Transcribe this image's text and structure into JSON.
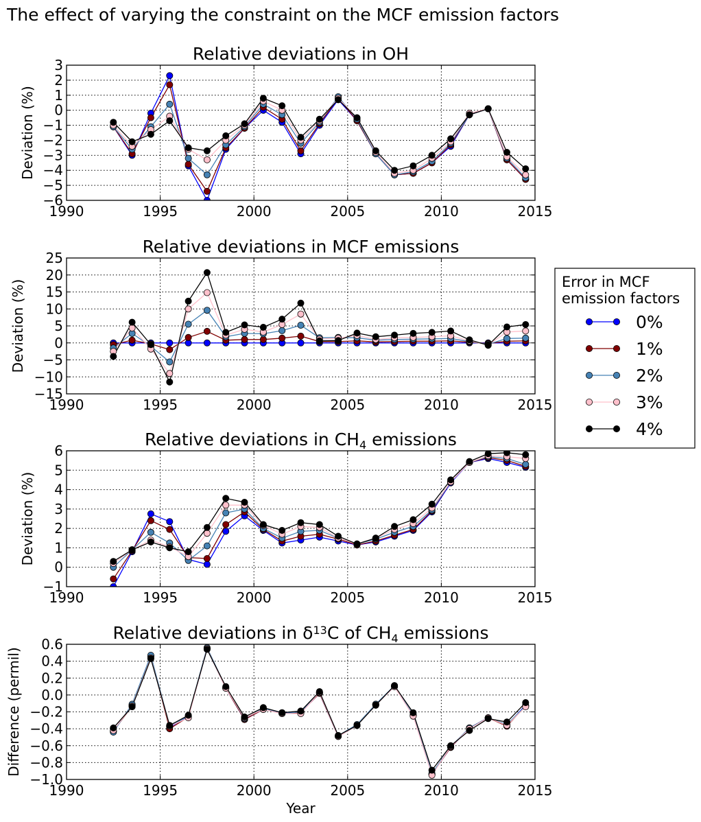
{
  "figure": {
    "title": "The effect of varying the constraint on the MCF emission factors"
  },
  "legend": {
    "title_line1": "Error in MCF",
    "title_line2": "emission factors",
    "entries": [
      {
        "label": "0%",
        "color": "#0000ff",
        "edge": "#000000"
      },
      {
        "label": "1%",
        "color": "#800000",
        "edge": "#000000"
      },
      {
        "label": "2%",
        "color": "#4682b4",
        "edge": "#000000"
      },
      {
        "label": "3%",
        "color": "#ffc0cb",
        "edge": "#000000"
      },
      {
        "label": "4%",
        "color": "#000000",
        "edge": "#000000"
      }
    ]
  },
  "chart_data": [
    {
      "type": "line",
      "title_parts": [
        "Relative deviations in OH"
      ],
      "ylabel": "Deviation (%)",
      "xlabel": "",
      "xlim": [
        1990,
        2015
      ],
      "ylim": [
        -6,
        3
      ],
      "xticks": [
        1990,
        1995,
        2000,
        2005,
        2010,
        2015
      ],
      "yticks": [
        -6,
        -5,
        -4,
        -3,
        -2,
        -1,
        0,
        1,
        2,
        3
      ],
      "ytick_labels": [
        "−6",
        "−5",
        "−4",
        "−3",
        "−2",
        "−1",
        "0",
        "1",
        "2",
        "3"
      ],
      "grid": true,
      "x": [
        1992.5,
        1993.5,
        1994.5,
        1995.5,
        1996.5,
        1997.5,
        1998.5,
        1999.5,
        2000.5,
        2001.5,
        2002.5,
        2003.5,
        2004.5,
        2005.5,
        2006.5,
        2007.5,
        2008.5,
        2009.5,
        2010.5,
        2011.5,
        2012.5,
        2013.5,
        2014.5
      ],
      "series": [
        {
          "name": "0%",
          "values": [
            -1.1,
            -3.0,
            -0.2,
            2.3,
            -3.7,
            -6.0,
            -2.6,
            -1.2,
            0.0,
            -0.8,
            -2.9,
            -1.0,
            0.7,
            -0.7,
            -2.9,
            -4.3,
            -4.2,
            -3.5,
            -2.4,
            -0.3,
            0.1,
            -3.3,
            -4.6
          ]
        },
        {
          "name": "1%",
          "values": [
            -1.1,
            -2.9,
            -0.5,
            1.7,
            -3.6,
            -5.4,
            -2.5,
            -1.2,
            0.2,
            -0.6,
            -2.7,
            -0.9,
            0.8,
            -0.7,
            -2.9,
            -4.3,
            -4.2,
            -3.5,
            -2.3,
            -0.3,
            0.1,
            -3.3,
            -4.6
          ]
        },
        {
          "name": "2%",
          "values": [
            -1.1,
            -2.6,
            -1.1,
            0.4,
            -3.2,
            -4.3,
            -2.3,
            -1.1,
            0.4,
            -0.3,
            -2.2,
            -0.8,
            0.9,
            -0.6,
            -2.9,
            -4.3,
            -4.1,
            -3.4,
            -2.2,
            -0.3,
            0.1,
            -3.2,
            -4.5
          ]
        },
        {
          "name": "3%",
          "values": [
            -1.0,
            -2.4,
            -1.3,
            -0.4,
            -2.6,
            -3.3,
            -2.0,
            -1.0,
            0.6,
            0.0,
            -2.0,
            -0.7,
            0.8,
            -0.5,
            -2.8,
            -4.2,
            -4.0,
            -3.2,
            -2.1,
            -0.2,
            0.1,
            -3.1,
            -4.3
          ]
        },
        {
          "name": "4%",
          "values": [
            -0.8,
            -2.1,
            -1.6,
            -0.7,
            -2.5,
            -2.7,
            -1.7,
            -0.9,
            0.8,
            0.3,
            -1.8,
            -0.6,
            0.7,
            -0.5,
            -2.7,
            -4.0,
            -3.7,
            -3.0,
            -1.9,
            -0.3,
            0.1,
            -2.8,
            -3.9
          ]
        }
      ]
    },
    {
      "type": "line",
      "title_parts": [
        "Relative deviations in MCF emissions"
      ],
      "ylabel": "Deviation (%)",
      "xlabel": "",
      "xlim": [
        1990,
        2015
      ],
      "ylim": [
        -15,
        25
      ],
      "xticks": [
        1990,
        1995,
        2000,
        2005,
        2010,
        2015
      ],
      "yticks": [
        -15,
        -10,
        -5,
        0,
        5,
        10,
        15,
        20,
        25
      ],
      "ytick_labels": [
        "−15",
        "−10",
        "−5",
        "0",
        "5",
        "10",
        "15",
        "20",
        "25"
      ],
      "grid": true,
      "x": [
        1992.5,
        1993.5,
        1994.5,
        1995.5,
        1996.5,
        1997.5,
        1998.5,
        1999.5,
        2000.5,
        2001.5,
        2002.5,
        2003.5,
        2004.5,
        2005.5,
        2006.5,
        2007.5,
        2008.5,
        2009.5,
        2010.5,
        2011.5,
        2012.5,
        2013.5,
        2014.5
      ],
      "series": [
        {
          "name": "0%",
          "values": [
            0.0,
            0.0,
            0.0,
            0.0,
            0.0,
            0.0,
            0.0,
            0.0,
            0.0,
            0.0,
            0.0,
            0.0,
            0.0,
            0.0,
            0.0,
            0.0,
            0.0,
            0.0,
            0.0,
            0.0,
            0.0,
            0.0,
            0.0
          ]
        },
        {
          "name": "1%",
          "values": [
            -0.5,
            0.8,
            -0.3,
            -2.0,
            1.6,
            3.4,
            0.8,
            1.0,
            1.0,
            1.4,
            2.0,
            0.4,
            0.4,
            0.6,
            0.3,
            0.4,
            0.5,
            0.5,
            0.6,
            0.2,
            -0.2,
            0.5,
            0.6
          ]
        },
        {
          "name": "2%",
          "values": [
            -1.5,
            2.8,
            -1.0,
            -5.6,
            5.5,
            9.6,
            1.8,
            2.8,
            2.7,
            3.6,
            5.2,
            1.5,
            1.6,
            1.5,
            0.8,
            1.0,
            1.1,
            1.2,
            1.3,
            0.4,
            -0.4,
            1.3,
            1.4
          ]
        },
        {
          "name": "3%",
          "values": [
            -2.5,
            4.4,
            -1.8,
            -9.0,
            10.0,
            14.8,
            2.3,
            4.0,
            3.2,
            5.4,
            8.5,
            1.1,
            1.4,
            2.2,
            1.0,
            1.5,
            1.6,
            1.8,
            2.1,
            0.6,
            -0.6,
            3.2,
            3.5
          ]
        },
        {
          "name": "4%",
          "values": [
            -4.0,
            6.1,
            -0.5,
            -11.5,
            12.3,
            20.7,
            3.1,
            5.3,
            4.6,
            7.0,
            11.7,
            0.6,
            0.7,
            2.9,
            1.8,
            2.3,
            2.8,
            3.1,
            3.5,
            0.9,
            -0.7,
            4.7,
            5.4
          ]
        }
      ]
    },
    {
      "type": "line",
      "title_parts": [
        "Relative deviations in CH",
        "4",
        " emissions"
      ],
      "ylabel": "Deviation (%)",
      "xlabel": "",
      "xlim": [
        1990,
        2015
      ],
      "ylim": [
        -1,
        6
      ],
      "xticks": [
        1990,
        1995,
        2000,
        2005,
        2010,
        2015
      ],
      "yticks": [
        -1,
        0,
        1,
        2,
        3,
        4,
        5,
        6
      ],
      "ytick_labels": [
        "−1",
        "0",
        "1",
        "2",
        "3",
        "4",
        "5",
        "6"
      ],
      "grid": true,
      "x": [
        1992.5,
        1993.5,
        1994.5,
        1995.5,
        1996.5,
        1997.5,
        1998.5,
        1999.5,
        2000.5,
        2001.5,
        2002.5,
        2003.5,
        2004.5,
        2005.5,
        2006.5,
        2007.5,
        2008.5,
        2009.5,
        2010.5,
        2011.5,
        2012.5,
        2013.5,
        2014.5
      ],
      "series": [
        {
          "name": "0%",
          "values": [
            -1.0,
            0.8,
            2.75,
            2.35,
            0.4,
            0.15,
            1.85,
            2.65,
            1.9,
            1.25,
            1.4,
            1.55,
            1.35,
            1.15,
            1.3,
            1.6,
            1.9,
            2.85,
            4.35,
            5.4,
            5.6,
            5.4,
            5.15
          ]
        },
        {
          "name": "1%",
          "values": [
            -0.6,
            0.85,
            2.4,
            1.95,
            0.5,
            0.45,
            2.2,
            2.85,
            1.95,
            1.35,
            1.6,
            1.7,
            1.45,
            1.15,
            1.35,
            1.65,
            1.95,
            2.9,
            4.4,
            5.4,
            5.65,
            5.5,
            5.2
          ]
        },
        {
          "name": "2%",
          "values": [
            0.0,
            0.9,
            1.8,
            1.25,
            0.35,
            1.1,
            2.8,
            3.0,
            2.0,
            1.5,
            1.85,
            1.9,
            1.5,
            1.2,
            1.45,
            1.8,
            2.1,
            2.95,
            4.4,
            5.4,
            5.7,
            5.6,
            5.3
          ]
        },
        {
          "name": "3%",
          "values": [
            0.2,
            0.9,
            1.4,
            1.05,
            0.55,
            1.75,
            3.2,
            3.2,
            2.15,
            1.7,
            2.1,
            2.05,
            1.5,
            1.2,
            1.5,
            1.95,
            2.25,
            3.05,
            4.4,
            5.4,
            5.75,
            5.7,
            5.6
          ]
        },
        {
          "name": "4%",
          "values": [
            0.3,
            0.9,
            1.3,
            1.0,
            0.8,
            2.05,
            3.55,
            3.35,
            2.2,
            1.9,
            2.3,
            2.2,
            1.6,
            1.2,
            1.5,
            2.1,
            2.45,
            3.25,
            4.5,
            5.45,
            5.85,
            5.9,
            5.8
          ]
        }
      ]
    },
    {
      "type": "line",
      "title_parts": [
        "Relative deviations in δ",
        "13",
        "C of CH",
        "4",
        " emissions"
      ],
      "ylabel": "Difference (permil)",
      "xlabel": "Year",
      "xlim": [
        1990,
        2015
      ],
      "ylim": [
        -1.0,
        0.6
      ],
      "xticks": [
        1990,
        1995,
        2000,
        2005,
        2010,
        2015
      ],
      "yticks": [
        -1.0,
        -0.8,
        -0.6,
        -0.4,
        -0.2,
        0.0,
        0.2,
        0.4,
        0.6
      ],
      "ytick_labels": [
        "−1.0",
        "−0.8",
        "−0.6",
        "−0.4",
        "−0.2",
        "0.0",
        "0.2",
        "0.4",
        "0.6"
      ],
      "grid": true,
      "x": [
        1992.5,
        1993.5,
        1994.5,
        1995.5,
        1996.5,
        1997.5,
        1998.5,
        1999.5,
        2000.5,
        2001.5,
        2002.5,
        2003.5,
        2004.5,
        2005.5,
        2006.5,
        2007.5,
        2008.5,
        2009.5,
        2010.5,
        2011.5,
        2012.5,
        2013.5,
        2014.5
      ],
      "series": [
        {
          "name": "0%",
          "values": [
            -0.43,
            -0.12,
            0.46,
            -0.38,
            -0.26,
            0.55,
            0.08,
            -0.29,
            -0.17,
            -0.21,
            -0.21,
            0.02,
            -0.49,
            -0.36,
            -0.11,
            0.1,
            -0.24,
            -0.94,
            -0.62,
            -0.39,
            -0.27,
            -0.36,
            -0.12
          ]
        },
        {
          "name": "1%",
          "values": [
            -0.43,
            -0.13,
            0.46,
            -0.4,
            -0.26,
            0.55,
            0.08,
            -0.29,
            -0.17,
            -0.22,
            -0.21,
            0.02,
            -0.49,
            -0.36,
            -0.11,
            0.1,
            -0.24,
            -0.94,
            -0.62,
            -0.39,
            -0.27,
            -0.37,
            -0.13
          ]
        },
        {
          "name": "2%",
          "values": [
            -0.44,
            -0.11,
            0.47,
            -0.37,
            -0.25,
            0.56,
            0.09,
            -0.28,
            -0.16,
            -0.22,
            -0.2,
            0.03,
            -0.48,
            -0.35,
            -0.11,
            0.11,
            -0.24,
            -0.93,
            -0.61,
            -0.39,
            -0.27,
            -0.35,
            -0.13
          ]
        },
        {
          "name": "3%",
          "values": [
            -0.42,
            -0.13,
            0.44,
            -0.37,
            -0.27,
            0.55,
            0.08,
            -0.27,
            -0.17,
            -0.22,
            -0.22,
            0.03,
            -0.49,
            -0.36,
            -0.12,
            0.1,
            -0.25,
            -0.95,
            -0.61,
            -0.4,
            -0.27,
            -0.36,
            -0.14
          ]
        },
        {
          "name": "4%",
          "values": [
            -0.39,
            -0.14,
            0.43,
            -0.36,
            -0.24,
            0.54,
            0.1,
            -0.26,
            -0.15,
            -0.21,
            -0.19,
            0.04,
            -0.48,
            -0.36,
            -0.12,
            0.11,
            -0.21,
            -0.89,
            -0.6,
            -0.42,
            -0.28,
            -0.32,
            -0.09
          ]
        }
      ]
    }
  ]
}
